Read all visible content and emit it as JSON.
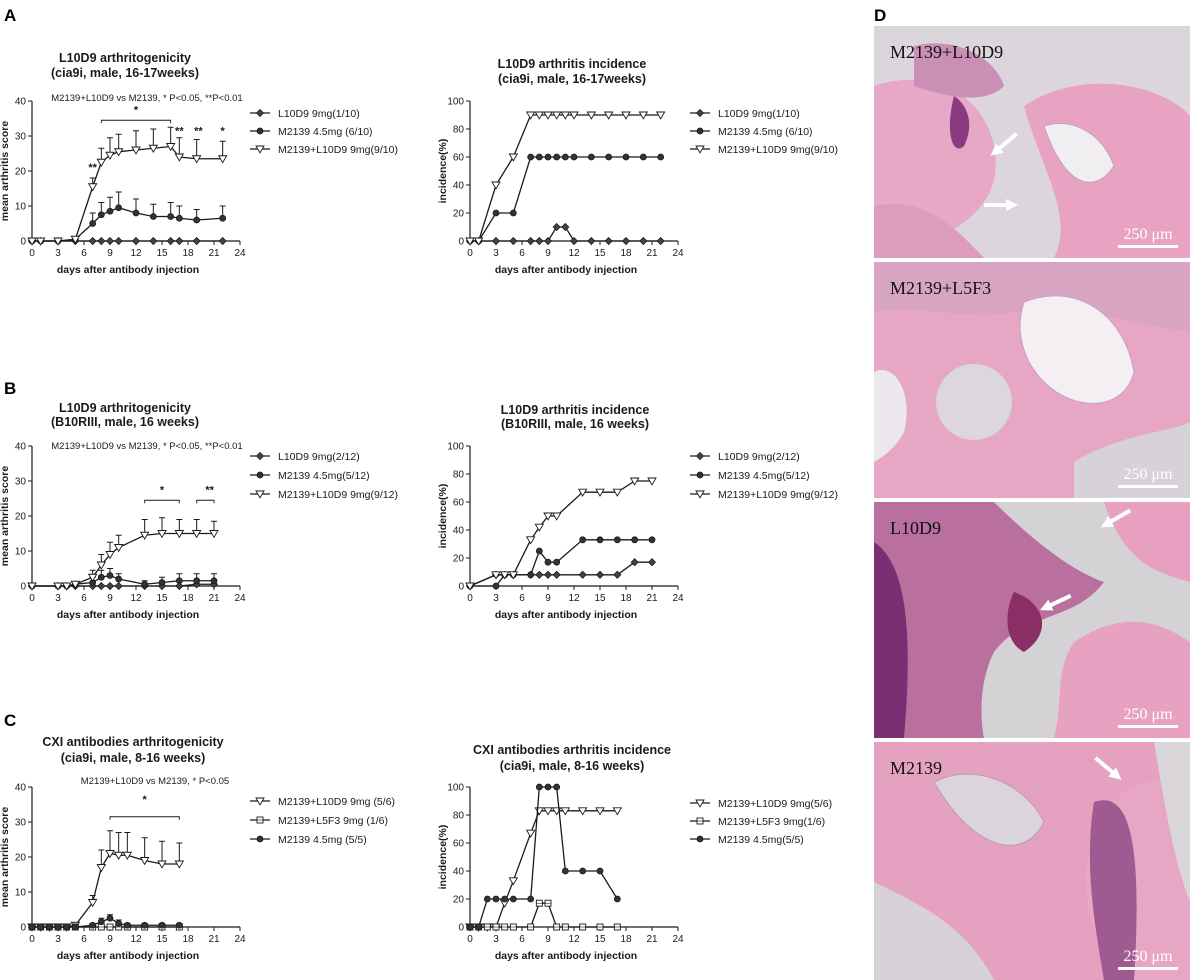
{
  "panel_labels": {
    "A": "A",
    "B": "B",
    "C": "C",
    "D": "D"
  },
  "chart_data": [
    {
      "id": "A-left",
      "type": "line",
      "title": "L10D9 arthritogenicity",
      "subtitle": "(cia9i, male, 16-17weeks)",
      "note": "M2139+L10D9 vs M2139, * P<0.05, **P<0.01",
      "xlabel": "days after antibody injection",
      "ylabel": "mean arthritis score",
      "xlim": [
        0,
        24
      ],
      "ylim": [
        0,
        40
      ],
      "xticks": [
        0,
        3,
        6,
        9,
        12,
        15,
        18,
        21,
        24
      ],
      "yticks": [
        0,
        10,
        20,
        30,
        40
      ],
      "legend_position": "right",
      "series": [
        {
          "name": "L10D9 9mg(1/10)",
          "marker": "diamond",
          "x": [
            0,
            1,
            3,
            5,
            7,
            8,
            9,
            10,
            12,
            14,
            16,
            17,
            19,
            22
          ],
          "y": [
            0,
            0,
            0,
            0,
            0,
            0,
            0,
            0,
            0,
            0,
            0,
            0,
            0,
            0
          ]
        },
        {
          "name": "M2139 4.5mg (6/10)",
          "marker": "dot",
          "x": [
            0,
            1,
            3,
            5,
            7,
            8,
            9,
            10,
            12,
            14,
            16,
            17,
            19,
            22
          ],
          "y": [
            0,
            0,
            0,
            0.5,
            5,
            7.5,
            8.5,
            9.5,
            8,
            7,
            7,
            6.5,
            6,
            6.5
          ],
          "err": [
            0,
            0,
            0,
            0.5,
            3,
            3.5,
            4,
            4.5,
            4,
            3.5,
            4,
            3.5,
            3,
            3.5
          ]
        },
        {
          "name": "M2139+L10D9 9mg(9/10)",
          "marker": "triangle-down",
          "x": [
            0,
            1,
            3,
            5,
            7,
            8,
            9,
            10,
            12,
            14,
            16,
            17,
            19,
            22
          ],
          "y": [
            0,
            0,
            0,
            0.5,
            15.5,
            22.5,
            24.5,
            25.5,
            26,
            26.5,
            27,
            24,
            23.5,
            23.5
          ],
          "err": [
            0,
            0,
            0,
            0.5,
            2.5,
            4,
            5,
            5,
            5.5,
            5.5,
            5.5,
            5.5,
            5.5,
            5
          ]
        }
      ],
      "annotations": [
        {
          "text": "**",
          "x": 7,
          "y": 20
        },
        {
          "text": "**",
          "x": 17,
          "y": 30.5
        },
        {
          "text": "**",
          "x": 19.2,
          "y": 30.5
        },
        {
          "text": "*",
          "x": 22,
          "y": 30.5
        },
        {
          "text": "*",
          "x": 12,
          "y": 36.5
        }
      ],
      "brackets": [
        {
          "x1": 8,
          "x2": 16,
          "y": 34.5
        }
      ]
    },
    {
      "id": "A-right",
      "type": "line",
      "title": "L10D9 arthritis incidence",
      "subtitle": "(cia9i, male, 16-17weeks)",
      "xlabel": "days after antibody injection",
      "ylabel": "incidence(%)",
      "xlim": [
        0,
        24
      ],
      "ylim": [
        0,
        100
      ],
      "xticks": [
        0,
        3,
        6,
        9,
        12,
        15,
        18,
        21,
        24
      ],
      "yticks": [
        0,
        20,
        40,
        60,
        80,
        100
      ],
      "legend_position": "right",
      "series": [
        {
          "name": "L10D9 9mg(1/10)",
          "marker": "diamond",
          "x": [
            0,
            1,
            3,
            5,
            7,
            8,
            9,
            10,
            11,
            12,
            14,
            16,
            18,
            20,
            22
          ],
          "y": [
            0,
            0,
            0,
            0,
            0,
            0,
            0,
            10,
            10,
            0,
            0,
            0,
            0,
            0,
            0
          ]
        },
        {
          "name": "M2139 4.5mg (6/10)",
          "marker": "dot",
          "x": [
            0,
            1,
            3,
            5,
            7,
            8,
            9,
            10,
            11,
            12,
            14,
            16,
            18,
            20,
            22
          ],
          "y": [
            0,
            0,
            20,
            20,
            60,
            60,
            60,
            60,
            60,
            60,
            60,
            60,
            60,
            60,
            60
          ]
        },
        {
          "name": "M2139+L10D9 9mg(9/10)",
          "marker": "triangle-down",
          "x": [
            0,
            1,
            3,
            5,
            7,
            8,
            9,
            10,
            11,
            12,
            14,
            16,
            18,
            20,
            22
          ],
          "y": [
            0,
            0,
            40,
            60,
            90,
            90,
            90,
            90,
            90,
            90,
            90,
            90,
            90,
            90,
            90
          ]
        }
      ]
    },
    {
      "id": "B-left",
      "type": "line",
      "title": "L10D9 arthritogenicity",
      "subtitle": "(B10RIII, male, 16 weeks)",
      "note": "M2139+L10D9 vs M2139, * P<0.05, **P<0.01",
      "xlabel": "days after antibody injection",
      "ylabel": "mean arthritis score",
      "xlim": [
        0,
        24
      ],
      "ylim": [
        0,
        40
      ],
      "xticks": [
        0,
        3,
        6,
        9,
        12,
        15,
        18,
        21,
        24
      ],
      "yticks": [
        0,
        10,
        20,
        30,
        40
      ],
      "legend_position": "right",
      "series": [
        {
          "name": "L10D9 9mg(2/12)",
          "marker": "diamond",
          "x": [
            0,
            3,
            4,
            5,
            7,
            8,
            9,
            10,
            13,
            15,
            17,
            19,
            21
          ],
          "y": [
            0,
            0,
            0,
            0,
            0,
            0,
            0,
            0,
            0,
            0,
            0,
            0.5,
            0.5
          ]
        },
        {
          "name": "M2139 4.5mg(5/12)",
          "marker": "dot",
          "x": [
            0,
            3,
            4,
            5,
            7,
            8,
            9,
            10,
            13,
            15,
            17,
            19,
            21
          ],
          "y": [
            0,
            0,
            0,
            0.5,
            1,
            2.5,
            3,
            2,
            0.5,
            1,
            1.5,
            1.5,
            1.5
          ],
          "err": [
            0,
            0,
            0,
            0.5,
            1.5,
            2,
            2,
            1.5,
            1,
            1.5,
            2,
            2,
            2
          ]
        },
        {
          "name": "M2139+L10D9 9mg(9/12)",
          "marker": "triangle-down",
          "x": [
            0,
            3,
            4,
            5,
            7,
            8,
            9,
            10,
            13,
            15,
            17,
            19,
            21
          ],
          "y": [
            0,
            0,
            0,
            0.5,
            2.5,
            6,
            9,
            11,
            14.5,
            15,
            15,
            15,
            15
          ],
          "err": [
            0,
            0,
            0,
            0.5,
            2,
            3,
            3.5,
            3.5,
            4.5,
            4.5,
            4,
            4,
            3.5
          ]
        }
      ],
      "annotations": [
        {
          "text": "*",
          "x": 15,
          "y": 26.5
        },
        {
          "text": "**",
          "x": 20.5,
          "y": 26.5
        }
      ],
      "brackets": [
        {
          "x1": 13,
          "x2": 17,
          "y": 24.5
        },
        {
          "x1": 19,
          "x2": 21,
          "y": 24.5
        }
      ]
    },
    {
      "id": "B-right",
      "type": "line",
      "title": "L10D9 arthritis incidence",
      "subtitle": "(B10RIII, male, 16 weeks)",
      "xlabel": "days after antibody injection",
      "ylabel": "incidence(%)",
      "xlim": [
        0,
        24
      ],
      "ylim": [
        0,
        100
      ],
      "xticks": [
        0,
        3,
        6,
        9,
        12,
        15,
        18,
        21,
        24
      ],
      "yticks": [
        0,
        20,
        40,
        60,
        80,
        100
      ],
      "legend_position": "right",
      "series": [
        {
          "name": "L10D9 9mg(2/12)",
          "marker": "diamond",
          "x": [
            0,
            3,
            4,
            5,
            7,
            8,
            9,
            10,
            13,
            15,
            17,
            19,
            21
          ],
          "y": [
            0,
            8,
            8,
            8,
            8,
            8,
            8,
            8,
            8,
            8,
            8,
            17,
            17
          ]
        },
        {
          "name": "M2139 4.5mg(5/12)",
          "marker": "dot",
          "x": [
            0,
            3,
            4,
            5,
            7,
            8,
            9,
            10,
            13,
            15,
            17,
            19,
            21
          ],
          "y": [
            0,
            0,
            8,
            8,
            8,
            25,
            17,
            17,
            33,
            33,
            33,
            33,
            33
          ]
        },
        {
          "name": "M2139+L10D9 9mg(9/12)",
          "marker": "triangle-down",
          "x": [
            0,
            3,
            4,
            5,
            7,
            8,
            9,
            10,
            13,
            15,
            17,
            19,
            21
          ],
          "y": [
            0,
            8,
            8,
            8,
            33,
            42,
            50,
            50,
            67,
            67,
            67,
            75,
            75
          ]
        }
      ]
    },
    {
      "id": "C-left",
      "type": "line",
      "title": "CXI antibodies arthritogenicity",
      "subtitle": "(cia9i, male,  8-16 weeks)",
      "note": "M2139+L10D9 vs M2139, * P<0.05",
      "xlabel": "days after antibody injection",
      "ylabel": "mean arthritis score",
      "xlim": [
        0,
        24
      ],
      "ylim": [
        0,
        40
      ],
      "xticks": [
        0,
        3,
        6,
        9,
        12,
        15,
        18,
        21,
        24
      ],
      "yticks": [
        0,
        10,
        20,
        30,
        40
      ],
      "legend_position": "right",
      "series": [
        {
          "name": "M2139+L10D9 9mg (5/6)",
          "marker": "triangle-down",
          "x": [
            0,
            1,
            2,
            3,
            4,
            5,
            7,
            8,
            9,
            10,
            11,
            13,
            15,
            17
          ],
          "y": [
            0,
            0,
            0,
            0,
            0,
            0.5,
            7,
            17,
            21,
            20.5,
            20.5,
            19,
            18,
            18
          ],
          "err": [
            0,
            0,
            0,
            0,
            0,
            0.5,
            2,
            5,
            6.5,
            6.5,
            6.5,
            6.5,
            6.5,
            6
          ]
        },
        {
          "name": "M2139+L5F3 9mg (1/6)",
          "marker": "square",
          "x": [
            0,
            1,
            2,
            3,
            4,
            5,
            7,
            8,
            9,
            10,
            11,
            13,
            15,
            17
          ],
          "y": [
            0,
            0,
            0,
            0,
            0,
            0,
            0,
            0,
            0,
            0,
            0,
            0,
            0,
            0
          ]
        },
        {
          "name": "M2139 4.5mg (5/5)",
          "marker": "dot",
          "x": [
            0,
            1,
            2,
            3,
            4,
            5,
            7,
            8,
            9,
            10,
            11,
            13,
            15,
            17
          ],
          "y": [
            0,
            0,
            0,
            0,
            0,
            0,
            0.5,
            1.5,
            2.5,
            1,
            0.5,
            0.5,
            0.5,
            0.5
          ],
          "err": [
            0,
            0,
            0,
            0,
            0,
            0,
            0.5,
            1,
            1,
            1,
            0.5,
            0.5,
            0.5,
            0.5
          ]
        }
      ],
      "annotations": [
        {
          "text": "*",
          "x": 13,
          "y": 35.5
        }
      ],
      "brackets": [
        {
          "x1": 9,
          "x2": 17,
          "y": 31.5
        }
      ]
    },
    {
      "id": "C-right",
      "type": "line",
      "title": "CXI antibodies arthritis incidence",
      "subtitle": "(cia9i, male, 8-16 weeks)",
      "xlabel": "days after antibody injection",
      "ylabel": "incidence(%)",
      "xlim": [
        0,
        24
      ],
      "ylim": [
        0,
        100
      ],
      "xticks": [
        0,
        3,
        6,
        9,
        12,
        15,
        18,
        21,
        24
      ],
      "yticks": [
        0,
        20,
        40,
        60,
        80,
        100
      ],
      "legend_position": "right",
      "series": [
        {
          "name": "M2139+L10D9 9mg(5/6)",
          "marker": "triangle-down",
          "x": [
            0,
            1,
            2,
            3,
            4,
            5,
            7,
            8,
            9,
            10,
            11,
            13,
            15,
            17
          ],
          "y": [
            0,
            0,
            0,
            0,
            17,
            33,
            67,
            83,
            83,
            83,
            83,
            83,
            83,
            83
          ]
        },
        {
          "name": "M2139+L5F3 9mg(1/6)",
          "marker": "square",
          "x": [
            0,
            1,
            2,
            3,
            4,
            5,
            7,
            8,
            9,
            10,
            11,
            13,
            15,
            17
          ],
          "y": [
            0,
            0,
            0,
            0,
            0,
            0,
            0,
            17,
            17,
            0,
            0,
            0,
            0,
            0
          ]
        },
        {
          "name": "M2139 4.5mg(5/5)",
          "marker": "dot",
          "x": [
            0,
            1,
            2,
            3,
            4,
            5,
            7,
            8,
            9,
            10,
            11,
            13,
            15,
            17
          ],
          "y": [
            0,
            0,
            20,
            20,
            20,
            20,
            20,
            100,
            100,
            100,
            40,
            40,
            40,
            20
          ]
        }
      ]
    }
  ],
  "histology": [
    {
      "label": "M2139+L10D9",
      "scale": "250 μm"
    },
    {
      "label": "M2139+L5F3",
      "scale": "250 μm"
    },
    {
      "label": "L10D9",
      "scale": "250 μm"
    },
    {
      "label": "M2139",
      "scale": "250 μm"
    }
  ],
  "colors": {
    "line": "#1a1a1a",
    "tissue_pink": "#e9a3c2",
    "tissue_purple": "#7b3a7e",
    "background_gray": "#d6d6d8"
  }
}
